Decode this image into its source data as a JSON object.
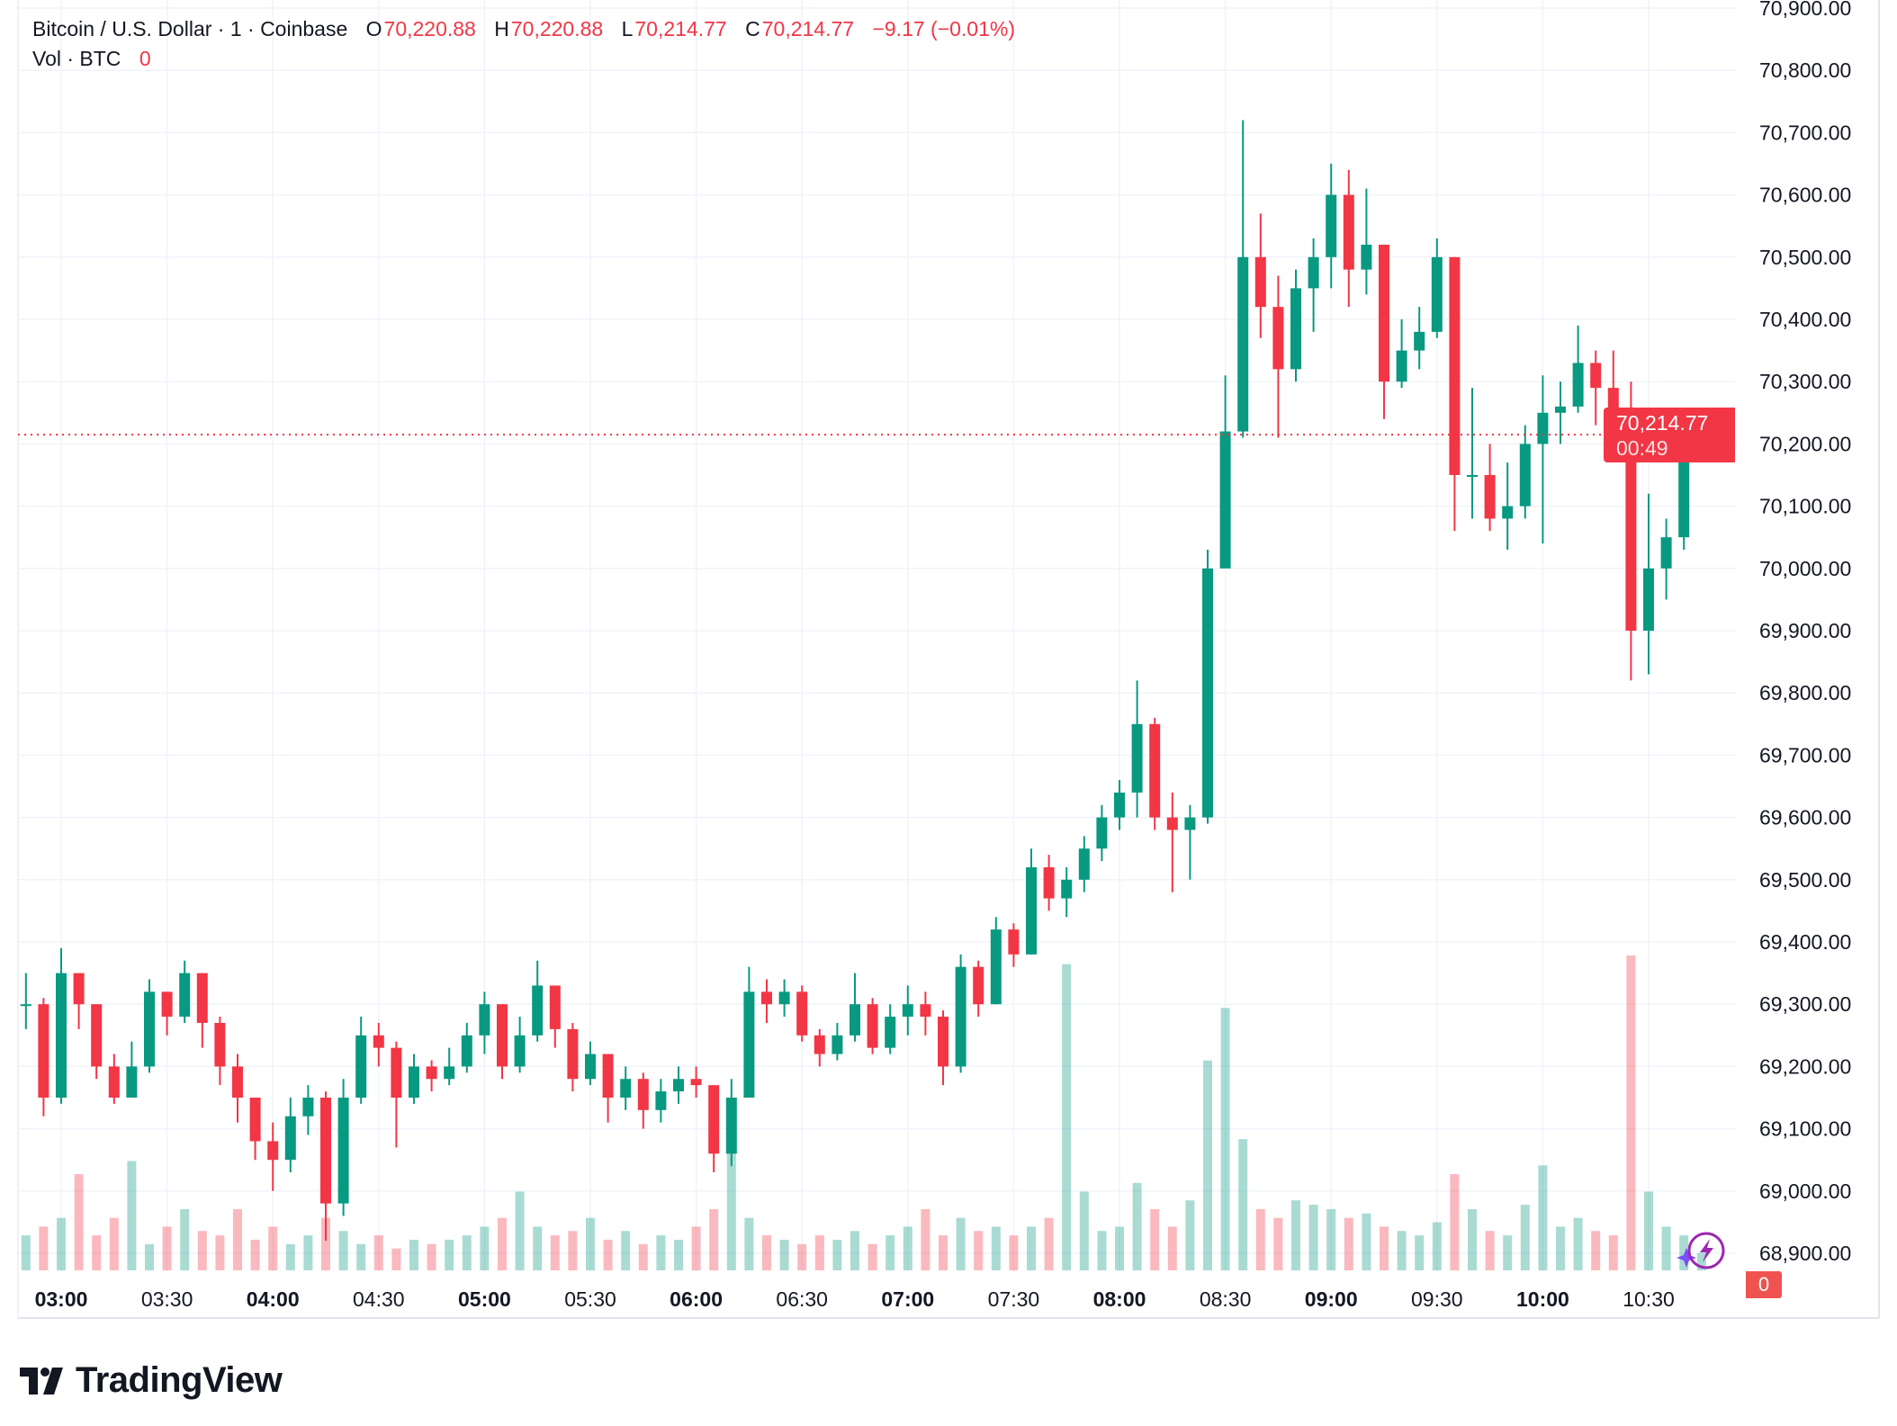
{
  "header": {
    "symbol": "Bitcoin / U.S. Dollar · 1 · Coinbase",
    "o_label": "O",
    "o_value": "70,220.88",
    "h_label": "H",
    "h_value": "70,220.88",
    "l_label": "L",
    "l_value": "70,214.77",
    "c_label": "C",
    "c_value": "70,214.77",
    "change": "−9.17 (−0.01%)",
    "vol_label": "Vol · BTC",
    "vol_value": "0"
  },
  "last_price": {
    "price": "70,214.77",
    "countdown": "00:49"
  },
  "volume_badge": "0",
  "logo": "TradingView",
  "colors": {
    "up": "#089981",
    "down": "#F23645",
    "grid": "#F0F3FA",
    "last_price": "#F23645",
    "ai_icon": "#9C27B0"
  },
  "icons": [
    "lightning-assistant-icon",
    "sparkle-icon",
    "tradingview-logo-icon"
  ],
  "chart_data": {
    "type": "candlestick",
    "interval_note": "approximate 5-minute aggregation of visible 1-minute bars",
    "y_ticks": [
      "70,900.00",
      "70,800.00",
      "70,700.00",
      "70,600.00",
      "70,500.00",
      "70,400.00",
      "70,300.00",
      "70,200.00",
      "70,100.00",
      "70,000.00",
      "69,900.00",
      "69,800.00",
      "69,700.00",
      "69,600.00",
      "69,500.00",
      "69,400.00",
      "69,300.00",
      "69,200.00",
      "69,100.00",
      "69,000.00",
      "68,900.00"
    ],
    "ylim": [
      68880,
      70910
    ],
    "x_ticks": [
      {
        "label": "03:00",
        "bold": true
      },
      {
        "label": "03:30",
        "bold": false
      },
      {
        "label": "04:00",
        "bold": true
      },
      {
        "label": "04:30",
        "bold": false
      },
      {
        "label": "05:00",
        "bold": true
      },
      {
        "label": "05:30",
        "bold": false
      },
      {
        "label": "06:00",
        "bold": true
      },
      {
        "label": "06:30",
        "bold": false
      },
      {
        "label": "07:00",
        "bold": true
      },
      {
        "label": "07:30",
        "bold": false
      },
      {
        "label": "08:00",
        "bold": true
      },
      {
        "label": "08:30",
        "bold": false
      },
      {
        "label": "09:00",
        "bold": true
      },
      {
        "label": "09:30",
        "bold": false
      },
      {
        "label": "10:00",
        "bold": true
      },
      {
        "label": "10:30",
        "bold": false
      }
    ],
    "last_price": 70214.77,
    "times": [
      "02:50",
      "02:55",
      "03:00",
      "03:05",
      "03:10",
      "03:15",
      "03:20",
      "03:25",
      "03:30",
      "03:35",
      "03:40",
      "03:45",
      "03:50",
      "03:55",
      "04:00",
      "04:05",
      "04:10",
      "04:15",
      "04:20",
      "04:25",
      "04:30",
      "04:35",
      "04:40",
      "04:45",
      "04:50",
      "04:55",
      "05:00",
      "05:05",
      "05:10",
      "05:15",
      "05:20",
      "05:25",
      "05:30",
      "05:35",
      "05:40",
      "05:45",
      "05:50",
      "05:55",
      "06:00",
      "06:05",
      "06:10",
      "06:15",
      "06:20",
      "06:25",
      "06:30",
      "06:35",
      "06:40",
      "06:45",
      "06:50",
      "06:55",
      "07:00",
      "07:05",
      "07:10",
      "07:15",
      "07:20",
      "07:25",
      "07:30",
      "07:35",
      "07:40",
      "07:45",
      "07:50",
      "07:55",
      "08:00",
      "08:05",
      "08:10",
      "08:15",
      "08:20",
      "08:25",
      "08:30",
      "08:35",
      "08:40",
      "08:45",
      "08:50",
      "08:55",
      "09:00",
      "09:05",
      "09:10",
      "09:15",
      "09:20",
      "09:25",
      "09:30",
      "09:35",
      "09:40",
      "09:45",
      "09:50",
      "09:55",
      "10:00",
      "10:05",
      "10:10",
      "10:15",
      "10:20",
      "10:25",
      "10:30",
      "10:35",
      "10:40",
      "10:45"
    ],
    "close": [
      69300,
      69150,
      69350,
      69300,
      69200,
      69150,
      69200,
      69320,
      69280,
      69350,
      69270,
      69200,
      69150,
      69080,
      69050,
      69120,
      69150,
      68980,
      69150,
      69250,
      69230,
      69150,
      69200,
      69180,
      69200,
      69250,
      69300,
      69200,
      69250,
      69330,
      69260,
      69180,
      69220,
      69150,
      69180,
      69130,
      69160,
      69180,
      69170,
      69060,
      69150,
      69320,
      69300,
      69320,
      69250,
      69220,
      69250,
      69300,
      69230,
      69280,
      69300,
      69280,
      69200,
      69360,
      69300,
      69420,
      69380,
      69520,
      69470,
      69500,
      69550,
      69600,
      69640,
      69750,
      69600,
      69580,
      69600,
      70000,
      70220,
      70500,
      70420,
      70320,
      70450,
      70500,
      70600,
      70480,
      70520,
      70300,
      70350,
      70380,
      70500,
      70150,
      70150,
      70080,
      70100,
      70200,
      70250,
      70260,
      70330,
      70290,
      70200,
      69900,
      70000,
      70050,
      70200,
      70214.77
    ],
    "high": [
      69350,
      69310,
      69390,
      69340,
      69300,
      69220,
      69240,
      69340,
      69320,
      69370,
      69350,
      69280,
      69220,
      69150,
      69110,
      69150,
      69170,
      69160,
      69180,
      69280,
      69270,
      69240,
      69220,
      69210,
      69230,
      69270,
      69320,
      69300,
      69280,
      69370,
      69330,
      69270,
      69240,
      69220,
      69200,
      69190,
      69180,
      69200,
      69200,
      69170,
      69180,
      69360,
      69340,
      69340,
      69330,
      69260,
      69270,
      69350,
      69310,
      69300,
      69330,
      69320,
      69290,
      69380,
      69370,
      69440,
      69430,
      69550,
      69540,
      69520,
      69570,
      69620,
      69660,
      69820,
      69760,
      69640,
      69620,
      70030,
      70310,
      70720,
      70570,
      70470,
      70480,
      70530,
      70650,
      70640,
      70610,
      70520,
      70400,
      70420,
      70530,
      70500,
      70290,
      70200,
      70170,
      70230,
      70310,
      70300,
      70390,
      70350,
      70350,
      70300,
      70120,
      70080,
      70250,
      70240
    ],
    "low": [
      69260,
      69120,
      69140,
      69260,
      69180,
      69140,
      69150,
      69190,
      69250,
      69270,
      69230,
      69170,
      69110,
      69050,
      69000,
      69030,
      69090,
      68920,
      68960,
      69140,
      69200,
      69070,
      69140,
      69160,
      69170,
      69190,
      69220,
      69180,
      69190,
      69240,
      69230,
      69160,
      69170,
      69110,
      69130,
      69100,
      69110,
      69140,
      69150,
      69030,
      69040,
      69150,
      69270,
      69280,
      69240,
      69200,
      69210,
      69240,
      69220,
      69220,
      69250,
      69250,
      69170,
      69190,
      69280,
      69300,
      69360,
      69380,
      69450,
      69440,
      69480,
      69530,
      69580,
      69600,
      69580,
      69480,
      69500,
      69590,
      70010,
      70210,
      70370,
      70210,
      70300,
      70380,
      70450,
      70420,
      70440,
      70240,
      70290,
      70320,
      70370,
      70060,
      70080,
      70060,
      70030,
      70080,
      70040,
      70200,
      70250,
      70230,
      70180,
      69820,
      69830,
      69950,
      70030,
      70190
    ],
    "volume": [
      8,
      10,
      12,
      22,
      8,
      12,
      25,
      6,
      10,
      14,
      9,
      8,
      14,
      7,
      10,
      6,
      8,
      12,
      9,
      6,
      8,
      5,
      7,
      6,
      7,
      8,
      10,
      12,
      18,
      10,
      8,
      9,
      12,
      7,
      9,
      6,
      8,
      7,
      10,
      14,
      34,
      12,
      8,
      7,
      6,
      8,
      7,
      9,
      6,
      8,
      10,
      14,
      8,
      12,
      9,
      10,
      8,
      10,
      12,
      70,
      18,
      9,
      10,
      20,
      14,
      10,
      16,
      48,
      60,
      30,
      14,
      12,
      16,
      15,
      14,
      12,
      13,
      10,
      9,
      8,
      11,
      22,
      14,
      9,
      8,
      15,
      24,
      10,
      12,
      9,
      8,
      72,
      18,
      10,
      8,
      4
    ]
  }
}
